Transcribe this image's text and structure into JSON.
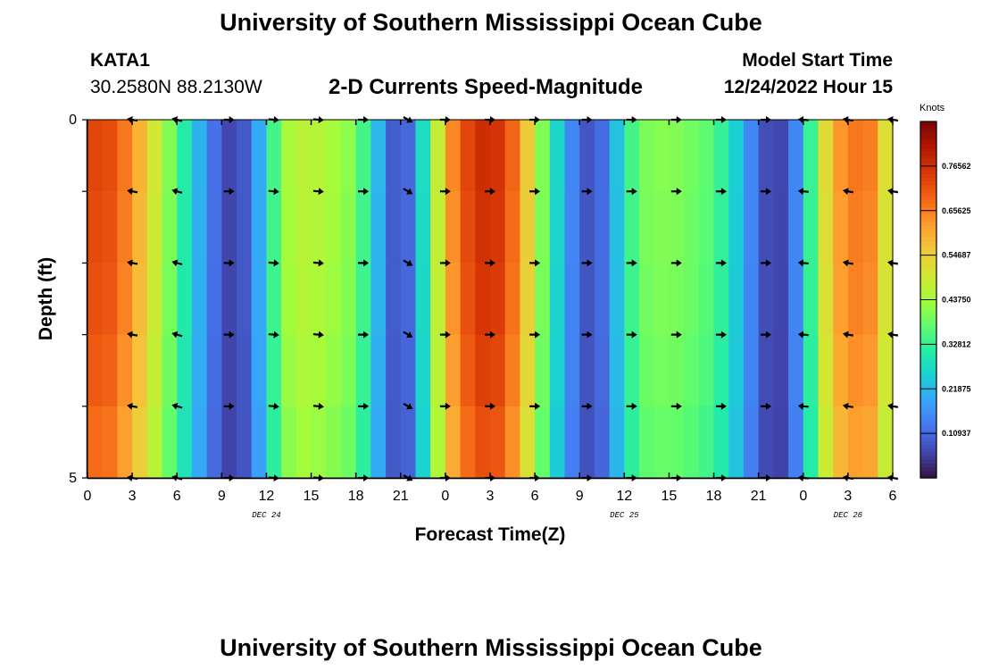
{
  "header": {
    "title": "University of Southern Mississippi Ocean Cube",
    "station_id": "KATA1",
    "coordinates": "30.2580N  88.2130W",
    "subtitle": "2-D Currents Speed-Magnitude",
    "model_start_label": "Model Start Time",
    "model_start_value": "12/24/2022 Hour 15"
  },
  "footer": {
    "title": "University of Southern Mississippi Ocean Cube"
  },
  "colors": {
    "arrow": "#000000",
    "axis": "#000000",
    "colormap": [
      "#30123b",
      "#4145ab",
      "#4675ed",
      "#39a2fc",
      "#1bcfd4",
      "#24eca6",
      "#61fc6c",
      "#a4fc3b",
      "#d1e834",
      "#f3c63a",
      "#fe9b2d",
      "#f36315",
      "#d93806",
      "#b11901",
      "#7a0402"
    ]
  },
  "chart_data": {
    "type": "heatmap",
    "xlabel": "Forecast Time(Z)",
    "ylabel": "Depth (ft)",
    "x_range": [
      0,
      54
    ],
    "y_range": [
      0,
      5
    ],
    "y_ticks": [
      "0",
      "5"
    ],
    "x_tick_labels": [
      "0",
      "3",
      "6",
      "9",
      "12",
      "15",
      "18",
      "21",
      "0",
      "3",
      "6",
      "9",
      "12",
      "15",
      "18",
      "21",
      "0",
      "3",
      "6"
    ],
    "date_labels": [
      {
        "text": "DEC 24",
        "hour": 12
      },
      {
        "text": "DEC 25",
        "hour": 36
      },
      {
        "text": "DEC 26",
        "hour": 51
      }
    ],
    "colorbar": {
      "unit": "Knots",
      "min": 0,
      "max": 0.875,
      "tick_labels": [
        "0.76562",
        "0.65625",
        "0.54687",
        "0.43750",
        "0.32812",
        "0.21875",
        "0.10937"
      ],
      "tick_values": [
        0.76562,
        0.65625,
        0.54687,
        0.4375,
        0.32812,
        0.21875,
        0.10937
      ]
    },
    "speed_profile": {
      "hours": [
        0,
        1,
        2,
        3,
        4,
        5,
        6,
        7,
        8,
        9,
        10,
        11,
        12,
        13,
        14,
        15,
        16,
        17,
        18,
        19,
        20,
        21,
        22,
        23,
        24,
        25,
        26,
        27,
        28,
        29,
        30,
        31,
        32,
        33,
        34,
        35,
        36,
        37,
        38,
        39,
        40,
        41,
        42,
        43,
        44,
        45,
        46,
        47,
        48,
        49,
        50,
        51,
        52,
        53,
        54
      ],
      "values": [
        0.72,
        0.74,
        0.7,
        0.63,
        0.55,
        0.45,
        0.36,
        0.26,
        0.16,
        0.08,
        0.05,
        0.13,
        0.27,
        0.42,
        0.47,
        0.47,
        0.45,
        0.43,
        0.4,
        0.29,
        0.14,
        0.05,
        0.17,
        0.38,
        0.59,
        0.7,
        0.76,
        0.78,
        0.74,
        0.63,
        0.48,
        0.33,
        0.2,
        0.1,
        0.07,
        0.16,
        0.3,
        0.39,
        0.41,
        0.41,
        0.4,
        0.38,
        0.36,
        0.3,
        0.2,
        0.1,
        0.05,
        0.08,
        0.22,
        0.45,
        0.6,
        0.66,
        0.67,
        0.64,
        0.4
      ]
    },
    "depth_factor": [
      1.0,
      0.99,
      0.98,
      0.96,
      0.93
    ],
    "arrow_hours": [
      3,
      6,
      9.5,
      12.5,
      15.5,
      18.5,
      21.5,
      24,
      27,
      30,
      33.5,
      36.5,
      39.5,
      42.5,
      45.5,
      48,
      51,
      54
    ],
    "arrow_directions_deg": [
      190,
      195,
      0,
      5,
      5,
      0,
      30,
      0,
      0,
      0,
      0,
      0,
      0,
      0,
      0,
      185,
      190,
      190
    ],
    "arrow_depths": [
      0,
      1,
      2,
      3,
      4,
      5
    ]
  }
}
